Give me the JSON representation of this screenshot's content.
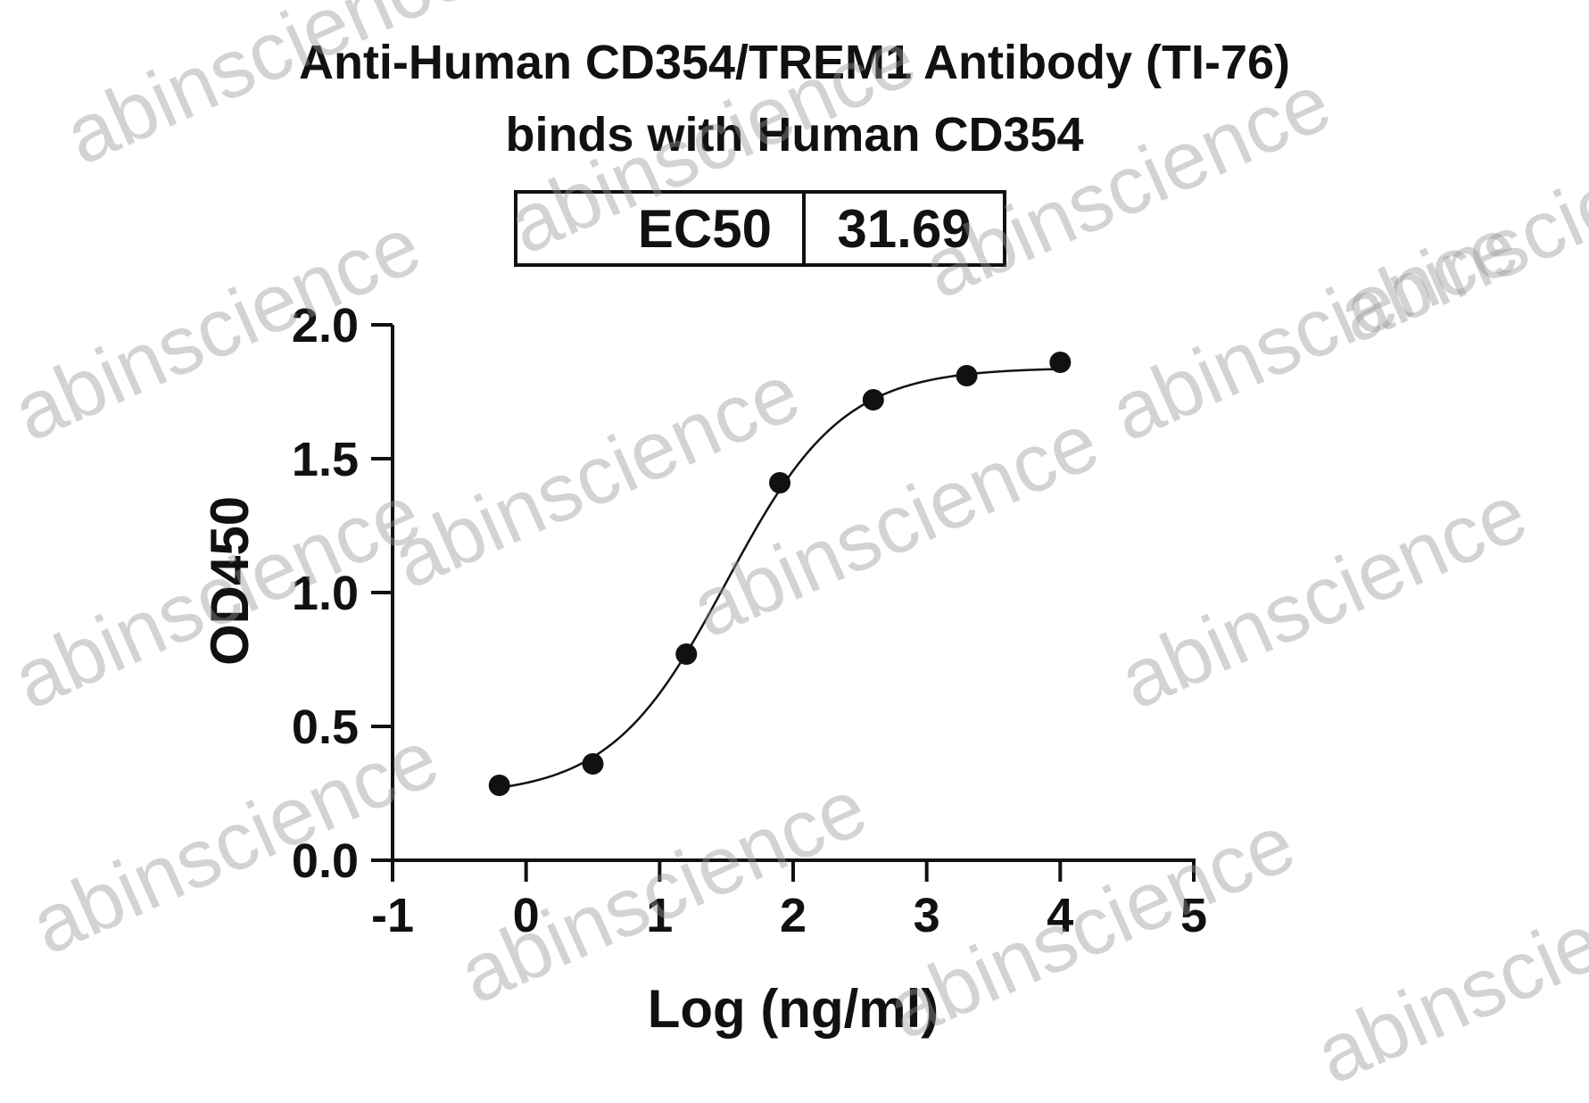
{
  "watermark": "abinscience",
  "chart_data": {
    "type": "scatter",
    "title": [
      "Anti-Human CD354/TREM1 Antibody (TI-76)",
      "binds with Human CD354"
    ],
    "xlabel": "Log (ng/ml)",
    "ylabel": "OD450",
    "xlim": [
      -1,
      5
    ],
    "ylim": [
      0,
      2
    ],
    "xticks": [
      "-1",
      "0",
      "1",
      "2",
      "3",
      "4",
      "5"
    ],
    "yticks": [
      "0.0",
      "0.5",
      "1.0",
      "1.5",
      "2.0"
    ],
    "grid": false,
    "legend": "none",
    "table": {
      "label": "EC50",
      "value": "31.69"
    },
    "series": [
      {
        "x": [
          -0.2,
          0.5,
          1.2,
          1.9,
          2.6,
          3.3,
          4.0
        ],
        "y": [
          0.28,
          0.36,
          0.77,
          1.41,
          1.72,
          1.81,
          1.86
        ],
        "color": "#111111"
      }
    ],
    "fit_curve": {
      "model": "4PL",
      "bottom": 0.24,
      "top": 1.84,
      "log_ec50": 1.501,
      "hill_slope": 1.0,
      "color": "#111111"
    }
  }
}
